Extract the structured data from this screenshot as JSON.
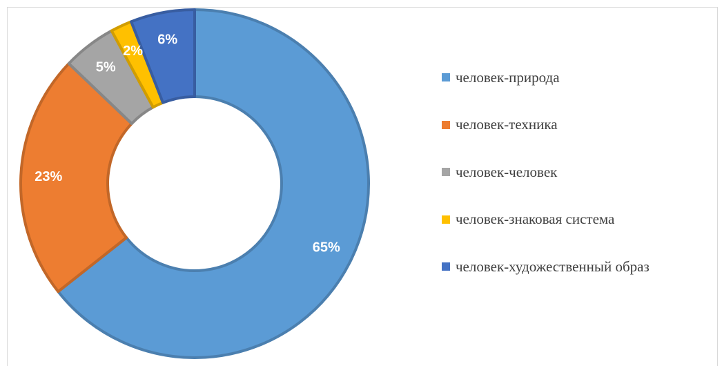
{
  "chart_data": {
    "type": "pie",
    "title": "",
    "legend_position": "right",
    "slices": [
      {
        "label": "человек-природа",
        "value": 65,
        "display": "65%",
        "color": "#5b9bd5"
      },
      {
        "label": "человек-техника",
        "value": 23,
        "display": "23%",
        "color": "#ed7d31"
      },
      {
        "label": "человек-человек",
        "value": 5,
        "display": "5%",
        "color": "#a5a5a5"
      },
      {
        "label": "человек-знаковая система",
        "value": 2,
        "display": "2%",
        "color": "#ffc000"
      },
      {
        "label": "человек-художественный образ",
        "value": 6,
        "display": "6%",
        "color": "#4472c4"
      }
    ]
  }
}
